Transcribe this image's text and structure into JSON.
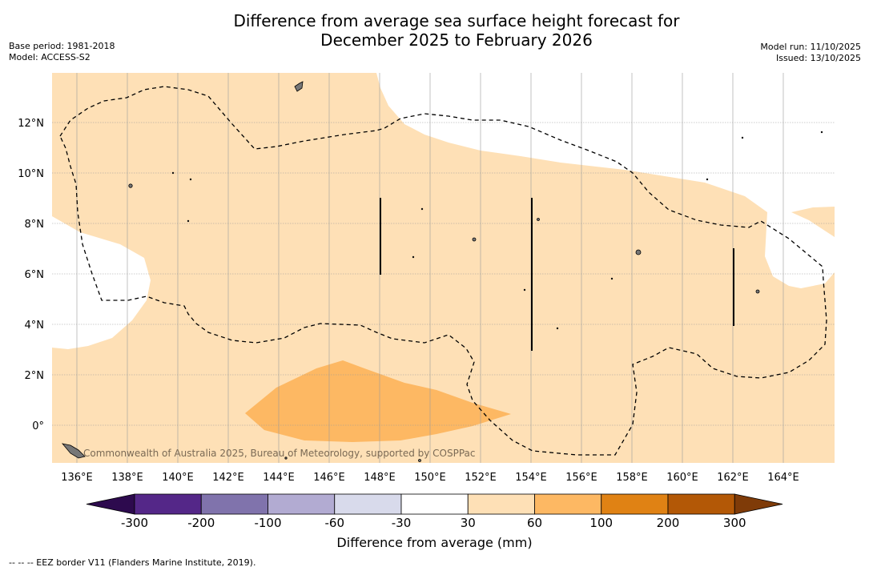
{
  "title_line1": "Difference from average sea surface height forecast for",
  "title_line2": "December 2025 to February 2026",
  "meta": {
    "base_period": "Base period: 1981-2018",
    "model": "Model: ACCESS-S2",
    "model_run": "Model run: 11/10/2025",
    "issued": "Issued: 13/10/2025"
  },
  "map": {
    "lon_labels": [
      "136°E",
      "138°E",
      "140°E",
      "142°E",
      "144°E",
      "146°E",
      "148°E",
      "150°E",
      "152°E",
      "154°E",
      "156°E",
      "158°E",
      "160°E",
      "162°E",
      "164°E"
    ],
    "lat_labels": [
      "12°N",
      "10°N",
      "8°N",
      "6°N",
      "4°N",
      "2°N",
      "0°"
    ],
    "attribution": "Commonwealth of Australia 2025, Bureau of Meteorology, supported by COSPPac"
  },
  "colorbar": {
    "ticks": [
      "-300",
      "-200",
      "-100",
      "-60",
      "-30",
      "30",
      "60",
      "100",
      "200",
      "300"
    ],
    "colors": [
      "#2d0a4e",
      "#542788",
      "#8073ac",
      "#b2abd2",
      "#d8daeb",
      "#ffffff",
      "#fee0b6",
      "#fdb863",
      "#e08214",
      "#b35806",
      "#7f3b08"
    ],
    "label": "Difference from average (mm)"
  },
  "footer": "--  --  -- EEZ border V11 (Flanders Marine Institute, 2019)."
}
